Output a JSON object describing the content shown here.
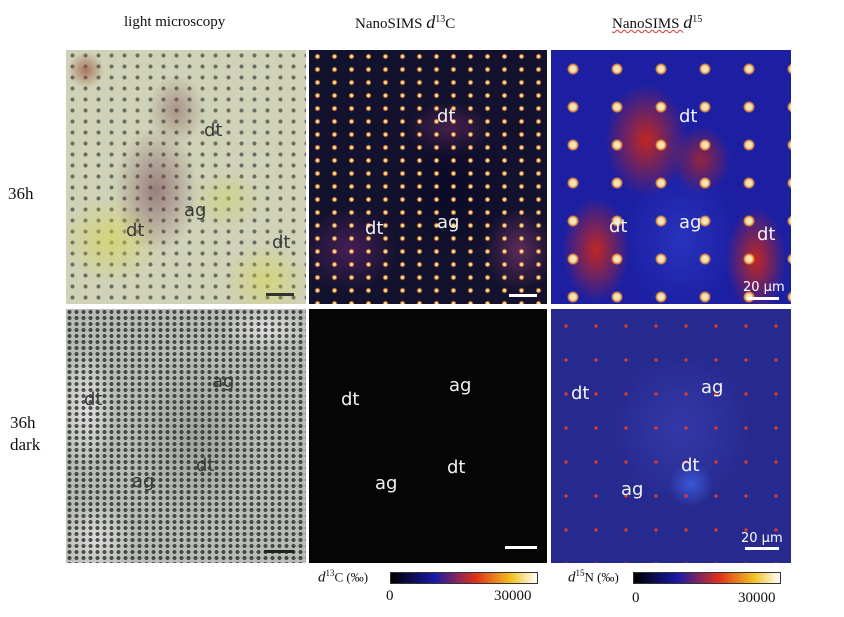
{
  "columns": {
    "col1": {
      "text": "light microscopy"
    },
    "col2": {
      "prefix": "NanoSIMS ",
      "symbol": "d",
      "sup": "13",
      "suffix": "C"
    },
    "col3": {
      "prefix": "NanoSIMS ",
      "symbol": "d",
      "sup": "15",
      "suffix": ""
    }
  },
  "rows": {
    "row1": {
      "line1": "36h"
    },
    "row2": {
      "line1": "36h",
      "line2": "dark"
    }
  },
  "panel_labels": {
    "dt": "dt",
    "ag": "ag"
  },
  "scale_text": "20 µm",
  "colorbars": {
    "c13": {
      "symbol": "d",
      "sup": "13",
      "rest": "C (‰)",
      "min": "0",
      "max": "30000"
    },
    "n15": {
      "symbol": "d",
      "sup": "15",
      "rest": "N (‰)",
      "min": "0",
      "max": "30000"
    }
  },
  "colors": {
    "nanosims_low": "#000000",
    "nanosims_mid1": "#1a1aa8",
    "nanosims_mid2": "#e0301a",
    "nanosims_high": "#ffffff"
  }
}
